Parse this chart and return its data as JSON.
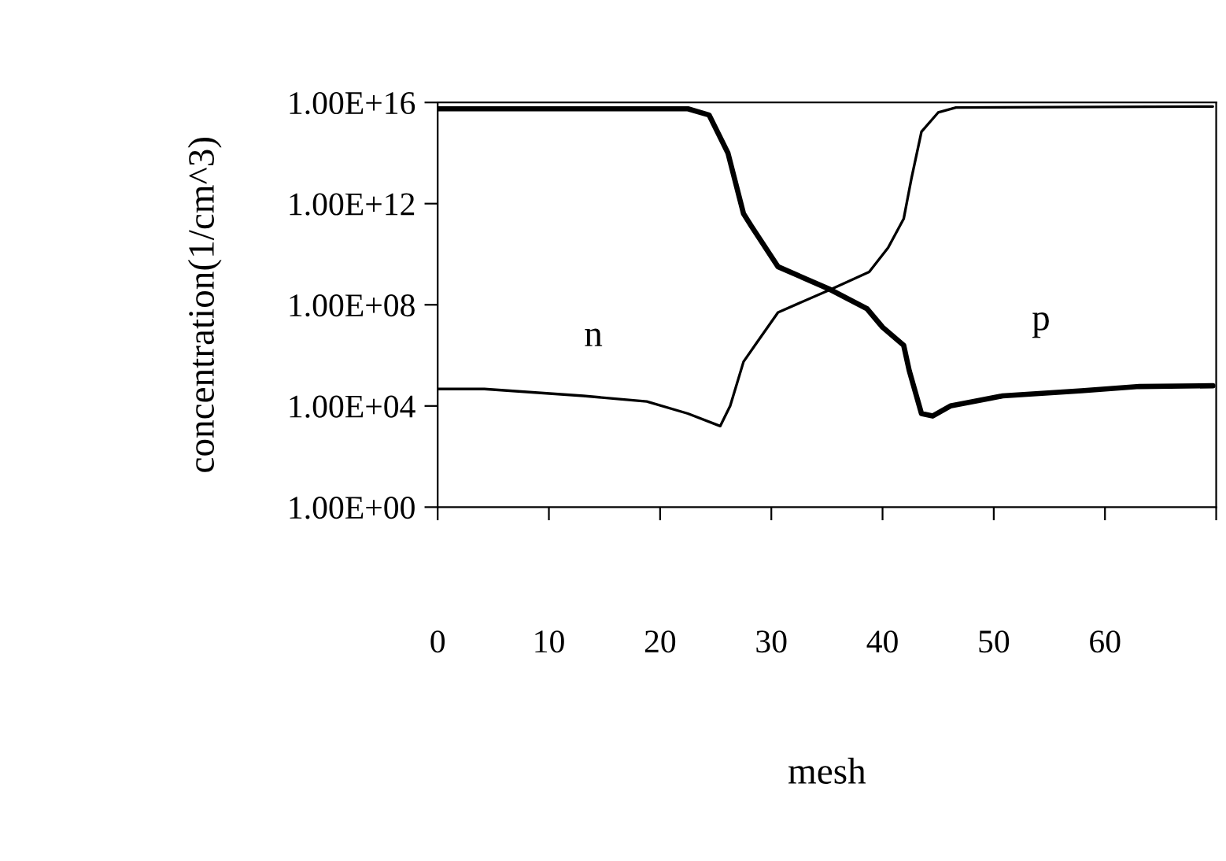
{
  "chart_data": {
    "type": "line",
    "xlabel": "mesh",
    "ylabel": "concentration(1/cm^3)",
    "annotations": [
      "n",
      "p"
    ],
    "log": "y",
    "grid": false,
    "legend": false,
    "marker": "none",
    "line_style": "solid",
    "xlim": [
      0,
      70
    ],
    "xticks": [
      0,
      10,
      20,
      30,
      40,
      50,
      60,
      {
        "value": 70,
        "label": null
      }
    ],
    "ylim": [
      1,
      1e+16
    ],
    "yticks": [
      {
        "value": 1,
        "label": "1.00E+00"
      },
      {
        "value": 10000.0,
        "label": "1.00E+04"
      },
      {
        "value": 100000000.0,
        "label": "1.00E+08"
      },
      {
        "value": 1000000000000.0,
        "label": "1.00E+12"
      },
      {
        "value": 1e+16,
        "label": "1.00E+16"
      }
    ],
    "series": [
      {
        "color": "#000000",
        "x": [
          0,
          22.5,
          24.4,
          26.1,
          27.5,
          28.2,
          30.6,
          35.3,
          38.6,
          40,
          41.9,
          42.4,
          43.5,
          44.5,
          46.1,
          50.8,
          57.9,
          63.1,
          69.7
        ],
        "values": [
          5600000000000000.0,
          5600000000000000.0,
          3200000000000000.0,
          100000000000000.0,
          400000000000.0,
          130000000000.0,
          3200000000.0,
          400000000.0,
          70000000.0,
          13000000.0,
          2500000.0,
          250000.0,
          5000.0,
          4000.0,
          10000.0,
          25000.0,
          40000.0,
          59000.0,
          63000.0
        ]
      },
      {
        "color": "#000000",
        "x": [
          0,
          4.2,
          13.1,
          18.8,
          22.5,
          25.4,
          26.3,
          27.5,
          28.7,
          30.6,
          35.3,
          38.8,
          40.5,
          41.9,
          42.6,
          43.5,
          45,
          46.6,
          69.7
        ],
        "values": [
          47000.0,
          47000.0,
          25000.0,
          15000.0,
          5000.0,
          1600.0,
          10000.0,
          560000.0,
          3200000.0,
          50000000.0,
          400000000.0,
          2000000000.0,
          18000000000.0,
          250000000000.0,
          10000000000000.0,
          700000000000000.0,
          4000000000000000.0,
          6300000000000000.0,
          6900000000000000.0
        ]
      }
    ]
  }
}
